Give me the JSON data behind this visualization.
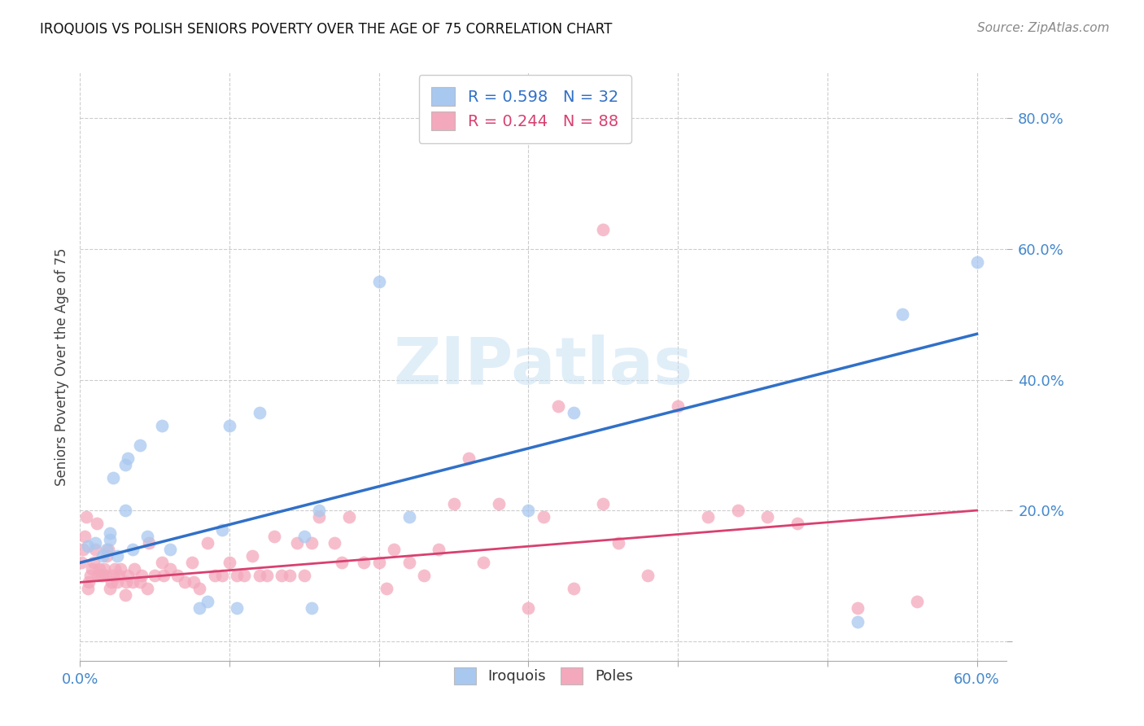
{
  "title": "IROQUOIS VS POLISH SENIORS POVERTY OVER THE AGE OF 75 CORRELATION CHART",
  "source": "Source: ZipAtlas.com",
  "ylabel": "Seniors Poverty Over the Age of 75",
  "xlim": [
    0.0,
    0.62
  ],
  "ylim": [
    -0.03,
    0.87
  ],
  "yticks": [
    0.0,
    0.2,
    0.4,
    0.6,
    0.8
  ],
  "ytick_labels": [
    "",
    "20.0%",
    "40.0%",
    "60.0%",
    "80.0%"
  ],
  "xticks": [
    0.0,
    0.1,
    0.2,
    0.3,
    0.4,
    0.5,
    0.6
  ],
  "xtick_labels": [
    "0.0%",
    "",
    "",
    "",
    "",
    "",
    "60.0%"
  ],
  "iroquois_color": "#A8C8F0",
  "poles_color": "#F4A8BC",
  "iroquois_line_color": "#3070C8",
  "poles_line_color": "#D84070",
  "legend_R_iroquois": "R = 0.598",
  "legend_N_iroquois": "N = 32",
  "legend_R_poles": "R = 0.244",
  "legend_N_poles": "N = 88",
  "watermark": "ZIPatlas",
  "iroquois_x": [
    0.005,
    0.01,
    0.015,
    0.018,
    0.02,
    0.02,
    0.022,
    0.025,
    0.03,
    0.03,
    0.032,
    0.035,
    0.04,
    0.045,
    0.055,
    0.06,
    0.08,
    0.085,
    0.095,
    0.1,
    0.105,
    0.12,
    0.15,
    0.155,
    0.16,
    0.2,
    0.22,
    0.3,
    0.33,
    0.52,
    0.55,
    0.6
  ],
  "iroquois_y": [
    0.145,
    0.15,
    0.13,
    0.14,
    0.155,
    0.165,
    0.25,
    0.13,
    0.2,
    0.27,
    0.28,
    0.14,
    0.3,
    0.16,
    0.33,
    0.14,
    0.05,
    0.06,
    0.17,
    0.33,
    0.05,
    0.35,
    0.16,
    0.05,
    0.2,
    0.55,
    0.19,
    0.2,
    0.35,
    0.03,
    0.5,
    0.58
  ],
  "poles_x": [
    0.001,
    0.002,
    0.003,
    0.004,
    0.005,
    0.006,
    0.007,
    0.008,
    0.009,
    0.01,
    0.011,
    0.012,
    0.013,
    0.014,
    0.015,
    0.016,
    0.017,
    0.018,
    0.019,
    0.02,
    0.021,
    0.022,
    0.023,
    0.025,
    0.026,
    0.027,
    0.03,
    0.031,
    0.032,
    0.035,
    0.036,
    0.04,
    0.041,
    0.045,
    0.046,
    0.05,
    0.055,
    0.056,
    0.06,
    0.065,
    0.07,
    0.075,
    0.076,
    0.08,
    0.085,
    0.09,
    0.095,
    0.1,
    0.105,
    0.11,
    0.115,
    0.12,
    0.125,
    0.13,
    0.135,
    0.14,
    0.145,
    0.15,
    0.155,
    0.16,
    0.17,
    0.175,
    0.18,
    0.19,
    0.2,
    0.205,
    0.21,
    0.22,
    0.23,
    0.24,
    0.25,
    0.26,
    0.27,
    0.28,
    0.3,
    0.31,
    0.32,
    0.33,
    0.35,
    0.36,
    0.38,
    0.4,
    0.42,
    0.44,
    0.46,
    0.48,
    0.52,
    0.56
  ],
  "poles_y": [
    0.12,
    0.14,
    0.16,
    0.19,
    0.08,
    0.09,
    0.1,
    0.11,
    0.12,
    0.14,
    0.18,
    0.1,
    0.11,
    0.1,
    0.1,
    0.11,
    0.1,
    0.13,
    0.14,
    0.08,
    0.09,
    0.1,
    0.11,
    0.09,
    0.1,
    0.11,
    0.07,
    0.09,
    0.1,
    0.09,
    0.11,
    0.09,
    0.1,
    0.08,
    0.15,
    0.1,
    0.12,
    0.1,
    0.11,
    0.1,
    0.09,
    0.12,
    0.09,
    0.08,
    0.15,
    0.1,
    0.1,
    0.12,
    0.1,
    0.1,
    0.13,
    0.1,
    0.1,
    0.16,
    0.1,
    0.1,
    0.15,
    0.1,
    0.15,
    0.19,
    0.15,
    0.12,
    0.19,
    0.12,
    0.12,
    0.08,
    0.14,
    0.12,
    0.1,
    0.14,
    0.21,
    0.28,
    0.12,
    0.21,
    0.05,
    0.19,
    0.36,
    0.08,
    0.21,
    0.15,
    0.1,
    0.36,
    0.19,
    0.2,
    0.19,
    0.18,
    0.05,
    0.06
  ],
  "poles_outlier_x": [
    0.35
  ],
  "poles_outlier_y": [
    0.63
  ],
  "iroquois_trend_x": [
    0.0,
    0.6
  ],
  "iroquois_trend_y": [
    0.12,
    0.47
  ],
  "poles_trend_x": [
    0.0,
    0.6
  ],
  "poles_trend_y": [
    0.09,
    0.2
  ]
}
